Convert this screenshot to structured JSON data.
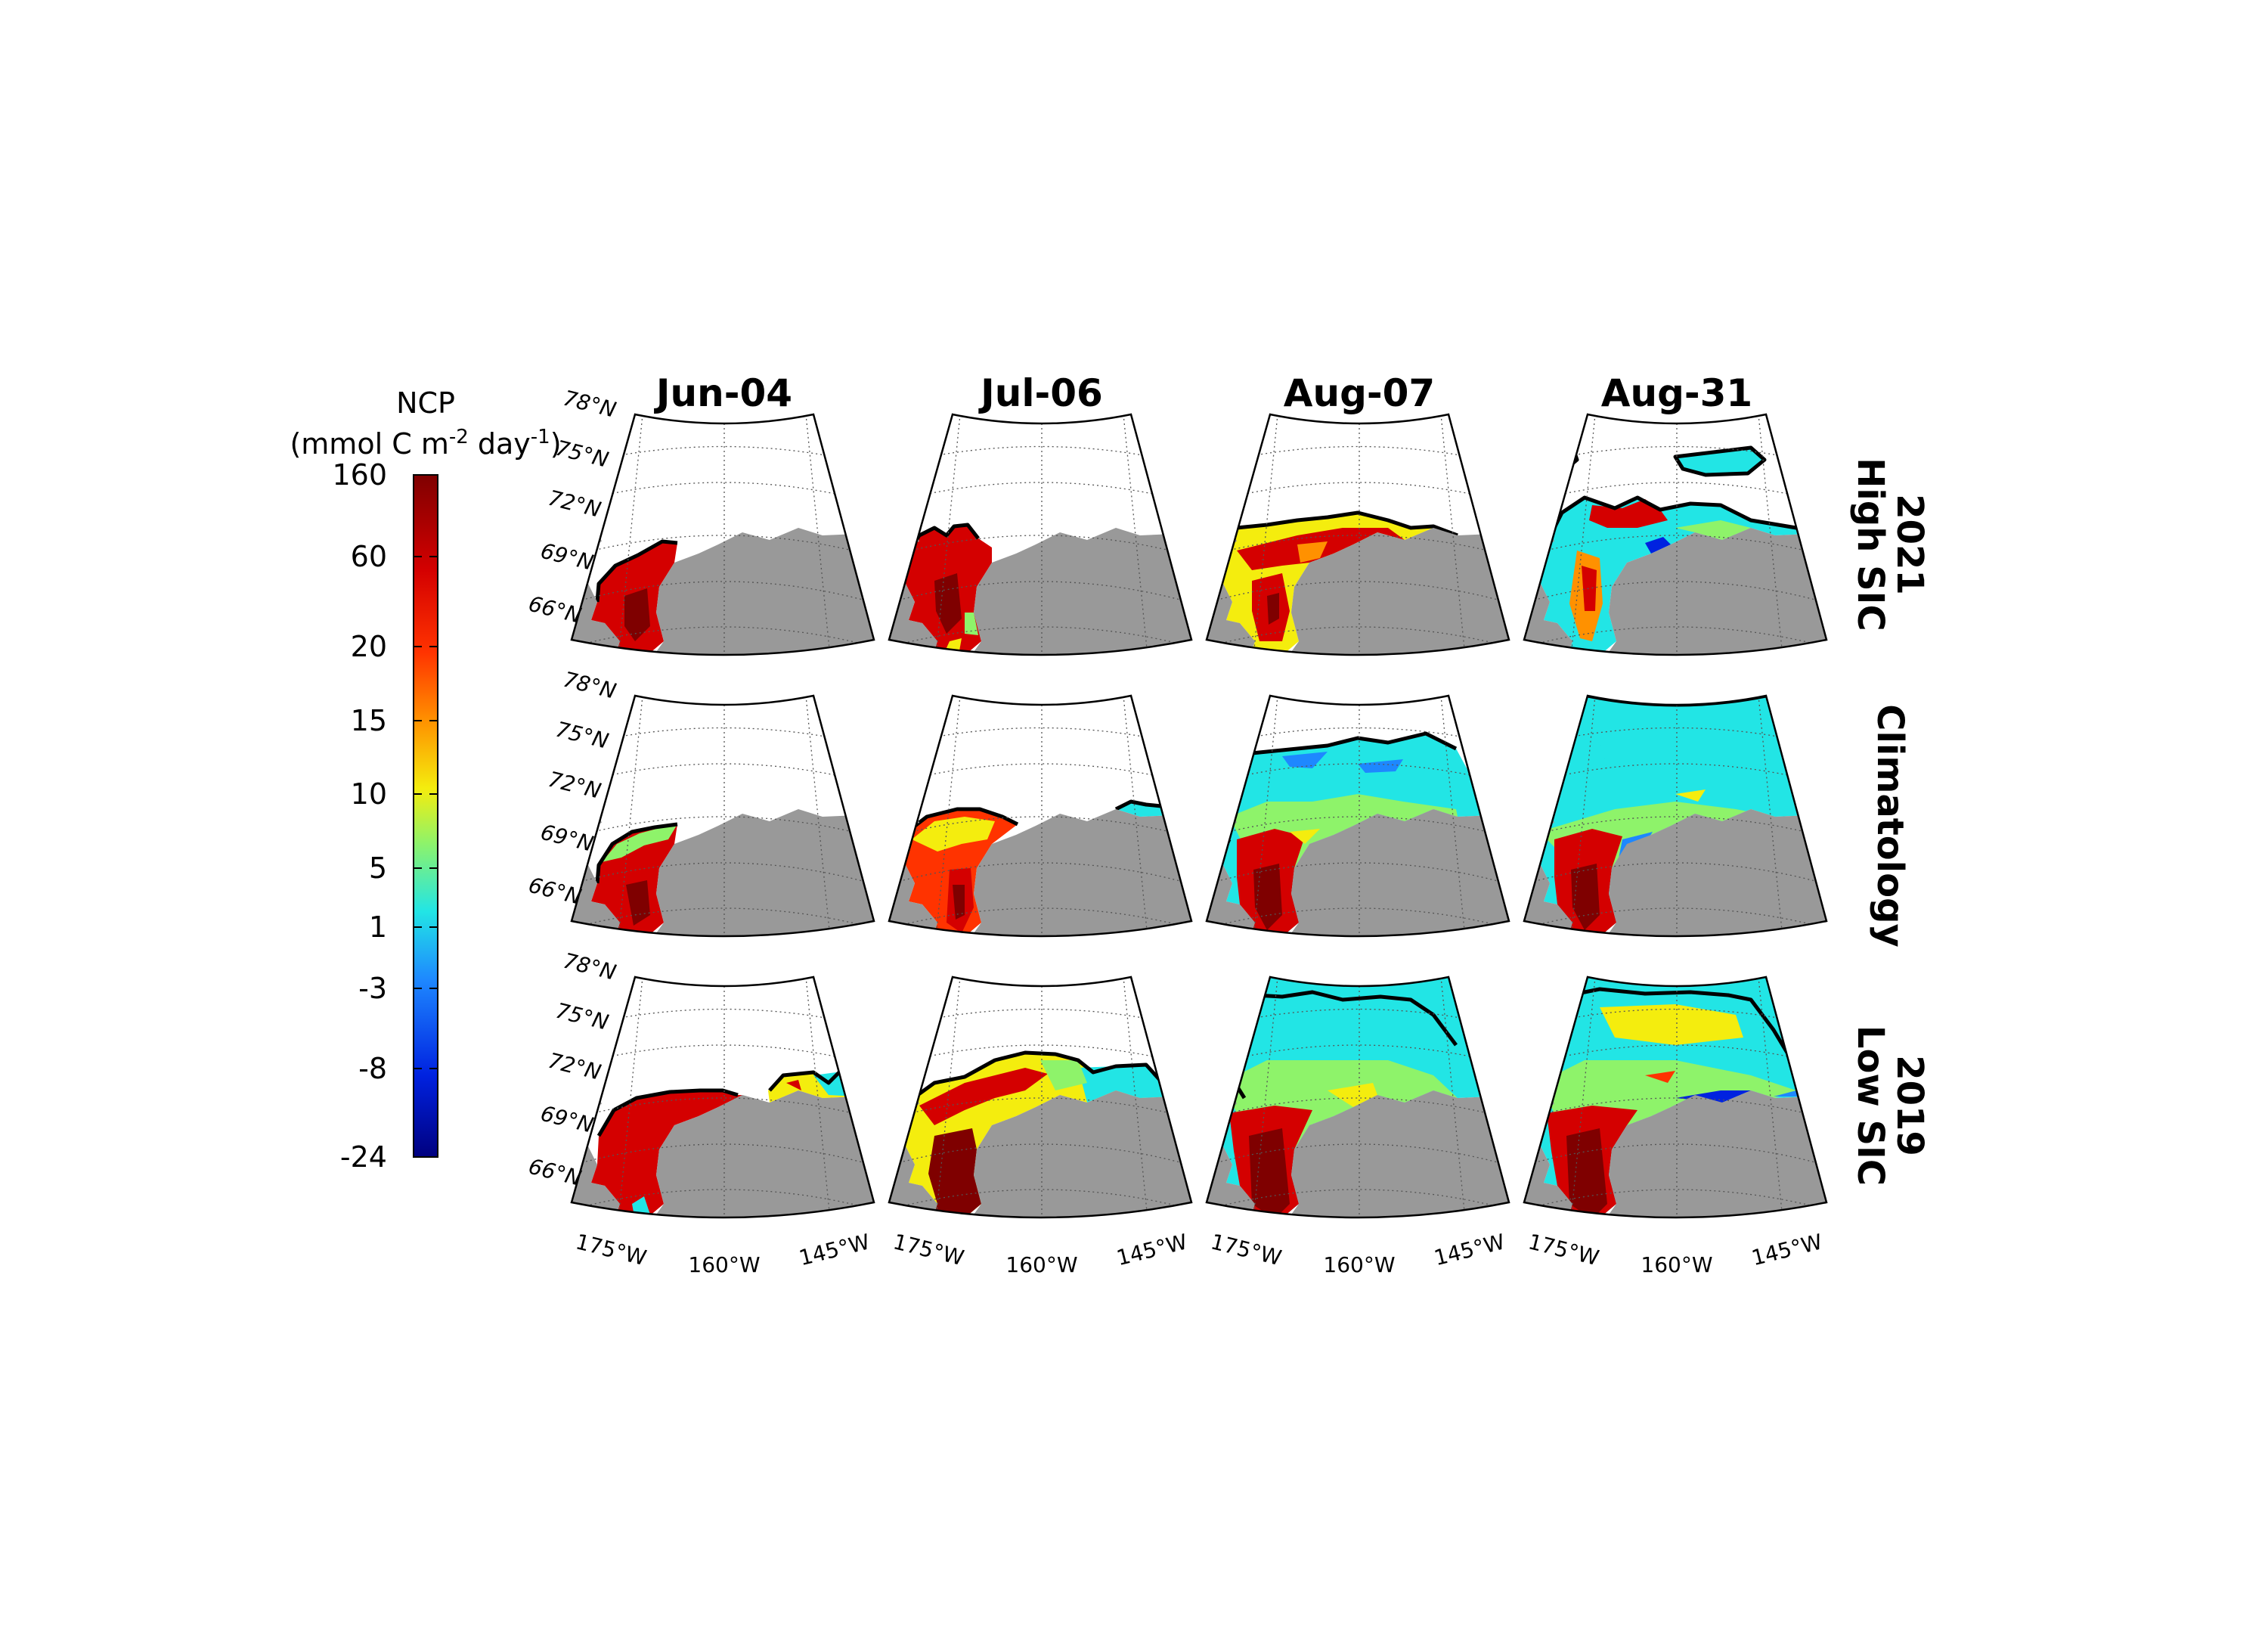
{
  "colorbar": {
    "title": "NCP",
    "unit": "(mmol C m-2 day-1)",
    "unit_parts": [
      "(mmol C m",
      "-2",
      " day",
      "-1",
      ")"
    ],
    "ticks": [
      "160",
      "60",
      "20",
      "15",
      "10",
      "5",
      "1",
      "-3",
      "-8",
      "-24"
    ],
    "colors": [
      "#7f0000",
      "#d40000",
      "#ff3300",
      "#ff9100",
      "#f4ed0e",
      "#8ef36a",
      "#22e5e5",
      "#1e88ff",
      "#0022e0",
      "#00007f"
    ]
  },
  "columns": [
    "Jun-04",
    "Jul-06",
    "Aug-07",
    "Aug-31"
  ],
  "rows": [
    {
      "id": "high",
      "year": "2021",
      "label": "High SIC"
    },
    {
      "id": "clim",
      "year": "",
      "label": "Climatology"
    },
    {
      "id": "low",
      "year": "2019",
      "label": "Low SIC"
    }
  ],
  "map": {
    "lat_labels": [
      "78°N",
      "75°N",
      "72°N",
      "69°N",
      "66°N"
    ],
    "lon_labels": [
      "175°W",
      "160°W",
      "145°W"
    ],
    "land_color": "#999999",
    "ice_edge_color": "#000000"
  }
}
